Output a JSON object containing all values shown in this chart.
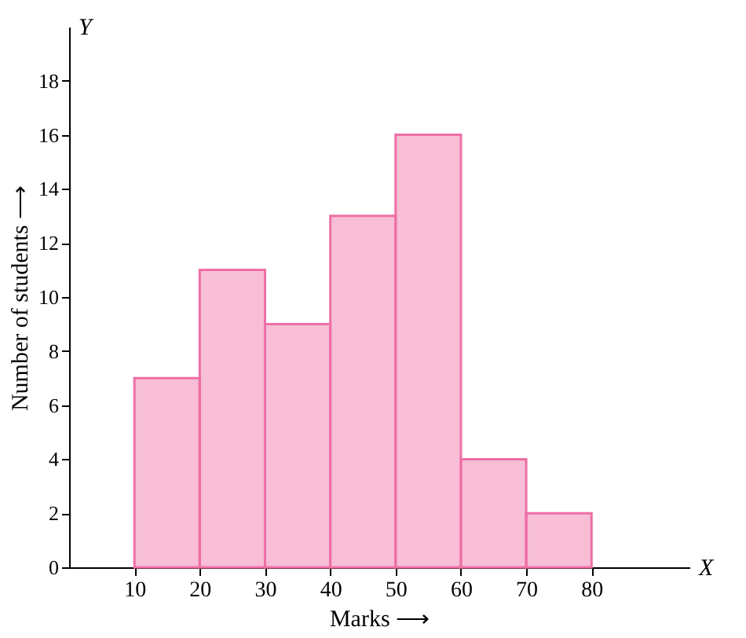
{
  "chart_data": {
    "type": "histogram",
    "xlabel": "Marks ⟶",
    "ylabel": "Number of students ⟶",
    "bins": [
      10,
      20,
      30,
      40,
      50,
      60,
      70,
      80
    ],
    "values": [
      7,
      11,
      9,
      13,
      16,
      4,
      2
    ],
    "color": "#ee6fa5",
    "xlim": [
      0,
      95
    ],
    "xticks": [
      10,
      20,
      30,
      40,
      50,
      60,
      70,
      80
    ],
    "ylim": [
      0,
      20
    ],
    "yticks": [
      0,
      2,
      4,
      6,
      8,
      10,
      12,
      14,
      16,
      18
    ],
    "grid": false,
    "annotations": [
      "Y",
      "X"
    ]
  }
}
